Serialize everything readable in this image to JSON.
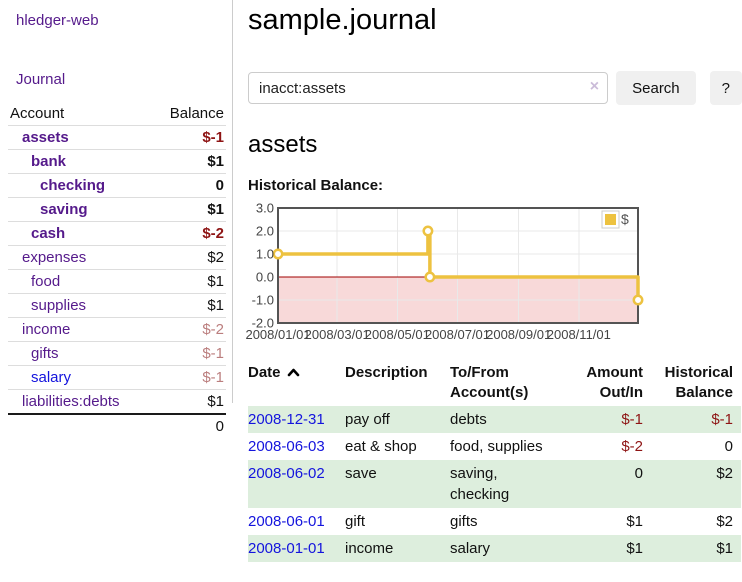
{
  "colors": {
    "purple": "#551a8b",
    "blue": "#1414dd",
    "negative": "#8e1414",
    "negative_muted": "#bb7e7e",
    "row_green": "#ddeedd",
    "row_border": "#dddddd",
    "divider": "#cccccc",
    "button_bg": "#f0f0f0",
    "clear_icon": "#cbbcd9",
    "axis_text": "#444444",
    "chart_line": "#edc240",
    "chart_negative_fill": "#f8d9d9",
    "chart_zero_line": "#a00000",
    "chart_border": "#545454",
    "grid_line": "#e9e9e9"
  },
  "sidebar": {
    "brand": "hledger-web",
    "journal_link": "Journal",
    "headers": {
      "account": "Account",
      "balance": "Balance"
    },
    "accounts": [
      {
        "label": "assets",
        "balance": "$-1",
        "depth": 1,
        "matched": true,
        "balance_style": "neg-strong",
        "link_style": "visited"
      },
      {
        "label": "bank",
        "balance": "$1",
        "depth": 2,
        "matched": true,
        "balance_style": "",
        "link_style": "visited"
      },
      {
        "label": "checking",
        "balance": "0",
        "depth": 3,
        "matched": true,
        "balance_style": "",
        "link_style": "visited"
      },
      {
        "label": "saving",
        "balance": "$1",
        "depth": 3,
        "matched": true,
        "balance_style": "",
        "link_style": "visited"
      },
      {
        "label": "cash",
        "balance": "$-2",
        "depth": 2,
        "matched": true,
        "balance_style": "neg-strong",
        "link_style": "visited"
      },
      {
        "label": "expenses",
        "balance": "$2",
        "depth": 1,
        "matched": false,
        "balance_style": "",
        "link_style": "visited"
      },
      {
        "label": "food",
        "balance": "$1",
        "depth": 2,
        "matched": false,
        "balance_style": "",
        "link_style": "visited"
      },
      {
        "label": "supplies",
        "balance": "$1",
        "depth": 2,
        "matched": false,
        "balance_style": "",
        "link_style": "visited"
      },
      {
        "label": "income",
        "balance": "$-2",
        "depth": 1,
        "matched": false,
        "balance_style": "neg-muted",
        "link_style": "visited"
      },
      {
        "label": "gifts",
        "balance": "$-1",
        "depth": 2,
        "matched": false,
        "balance_style": "neg-muted",
        "link_style": "visited"
      },
      {
        "label": "salary",
        "balance": "$-1",
        "depth": 2,
        "matched": false,
        "balance_style": "neg-muted",
        "link_style": "unvisited"
      },
      {
        "label": "liabilities:debts",
        "balance": "$1",
        "depth": 1,
        "matched": false,
        "balance_style": "",
        "link_style": "visited"
      }
    ],
    "total": "0"
  },
  "header": {
    "title": "sample.journal"
  },
  "search": {
    "value": "inacct:assets",
    "clear_icon": "×",
    "search_button": "Search",
    "help_button": "?"
  },
  "account_page": {
    "heading": "assets",
    "chart_label": "Historical Balance:"
  },
  "chart_data": {
    "type": "line",
    "title": "Historical Balance",
    "step": true,
    "x_range": {
      "start": "2008-01-01",
      "end": "2008-12-31"
    },
    "ylim": [
      -2,
      3
    ],
    "yticks": [
      {
        "label": "3.0",
        "value": 3
      },
      {
        "label": "2.0",
        "value": 2
      },
      {
        "label": "1.0",
        "value": 1
      },
      {
        "label": "0.0",
        "value": 0
      },
      {
        "label": "-1.0",
        "value": -1
      },
      {
        "label": "-2.0",
        "value": -2
      }
    ],
    "xticks": [
      {
        "label": "2008/01/01",
        "date": "2008-01-01"
      },
      {
        "label": "2008/03/01",
        "date": "2008-03-01"
      },
      {
        "label": "2008/05/01",
        "date": "2008-05-01"
      },
      {
        "label": "2008/07/01",
        "date": "2008-07-01"
      },
      {
        "label": "2008/09/01",
        "date": "2008-09-01"
      },
      {
        "label": "2008/11/01",
        "date": "2008-11-01"
      }
    ],
    "series": [
      {
        "name": "$",
        "color": "#edc240",
        "points": [
          {
            "date": "2008-01-01",
            "value": 1
          },
          {
            "date": "2008-06-01",
            "value": 2
          },
          {
            "date": "2008-06-03",
            "value": 0
          },
          {
            "date": "2008-12-31",
            "value": -1
          }
        ]
      }
    ],
    "legend": {
      "position": "top-right",
      "entries": [
        {
          "label": "$",
          "color": "#edc240"
        }
      ]
    },
    "grid": true,
    "negative_region_shaded": true
  },
  "register": {
    "columns": [
      "Date",
      "Description",
      "To/From Account(s)",
      "Amount Out/In",
      "Historical Balance"
    ],
    "sort": {
      "column": "Date",
      "direction": "ascending"
    },
    "rows": [
      {
        "date": "2008-12-31",
        "description": "pay off",
        "accounts": "debts",
        "amount": "$-1",
        "amount_negative": true,
        "balance": "$-1",
        "balance_negative": true
      },
      {
        "date": "2008-06-03",
        "description": "eat & shop",
        "accounts": "food, supplies",
        "amount": "$-2",
        "amount_negative": true,
        "balance": "0",
        "balance_negative": false
      },
      {
        "date": "2008-06-02",
        "description": "save",
        "accounts": "saving, checking",
        "amount": "0",
        "amount_negative": false,
        "balance": "$2",
        "balance_negative": false
      },
      {
        "date": "2008-06-01",
        "description": "gift",
        "accounts": "gifts",
        "amount": "$1",
        "amount_negative": false,
        "balance": "$2",
        "balance_negative": false
      },
      {
        "date": "2008-01-01",
        "description": "income",
        "accounts": "salary",
        "amount": "$1",
        "amount_negative": false,
        "balance": "$1",
        "balance_negative": false
      }
    ]
  }
}
